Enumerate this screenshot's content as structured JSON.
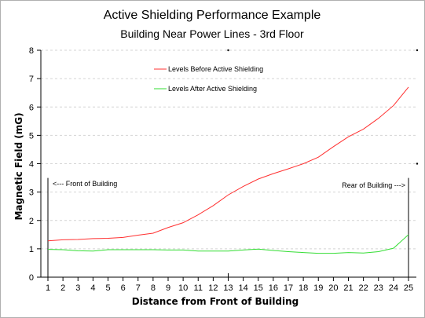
{
  "chart_data": {
    "type": "line",
    "title": "Active Shielding Performance Example",
    "subtitle": "Building Near Power Lines - 3rd Floor",
    "xlabel": "Distance from Front of Building",
    "ylabel": "Magnetic Field  (mG)",
    "x": [
      1,
      2,
      3,
      4,
      5,
      6,
      7,
      8,
      9,
      10,
      11,
      12,
      13,
      14,
      15,
      16,
      17,
      18,
      19,
      20,
      21,
      22,
      23,
      24,
      25
    ],
    "xlim": [
      1,
      25
    ],
    "ylim": [
      0,
      8
    ],
    "yticks": [
      0,
      1,
      2,
      3,
      4,
      5,
      6,
      7,
      8
    ],
    "grid": "horizontal dashed",
    "legend_position": "top-left",
    "series": [
      {
        "name": "Levels Before Active Shielding",
        "color": "#ff3030",
        "values": [
          1.28,
          1.32,
          1.33,
          1.36,
          1.37,
          1.4,
          1.48,
          1.55,
          1.75,
          1.92,
          2.2,
          2.52,
          2.9,
          3.2,
          3.46,
          3.65,
          3.82,
          4.0,
          4.23,
          4.6,
          4.95,
          5.22,
          5.6,
          6.05,
          6.7
        ]
      },
      {
        "name": "Levels After Active Shielding",
        "color": "#33dd33",
        "values": [
          0.98,
          0.97,
          0.93,
          0.92,
          0.97,
          0.97,
          0.97,
          0.97,
          0.96,
          0.96,
          0.92,
          0.92,
          0.92,
          0.96,
          0.99,
          0.94,
          0.9,
          0.87,
          0.84,
          0.84,
          0.87,
          0.85,
          0.9,
          1.02,
          1.5
        ]
      }
    ],
    "annotations": [
      {
        "text": "<--- Front of Building",
        "x": 1,
        "y": 3.3
      },
      {
        "text": "Rear of Building --->",
        "x": 25,
        "y": 3.3
      }
    ]
  }
}
